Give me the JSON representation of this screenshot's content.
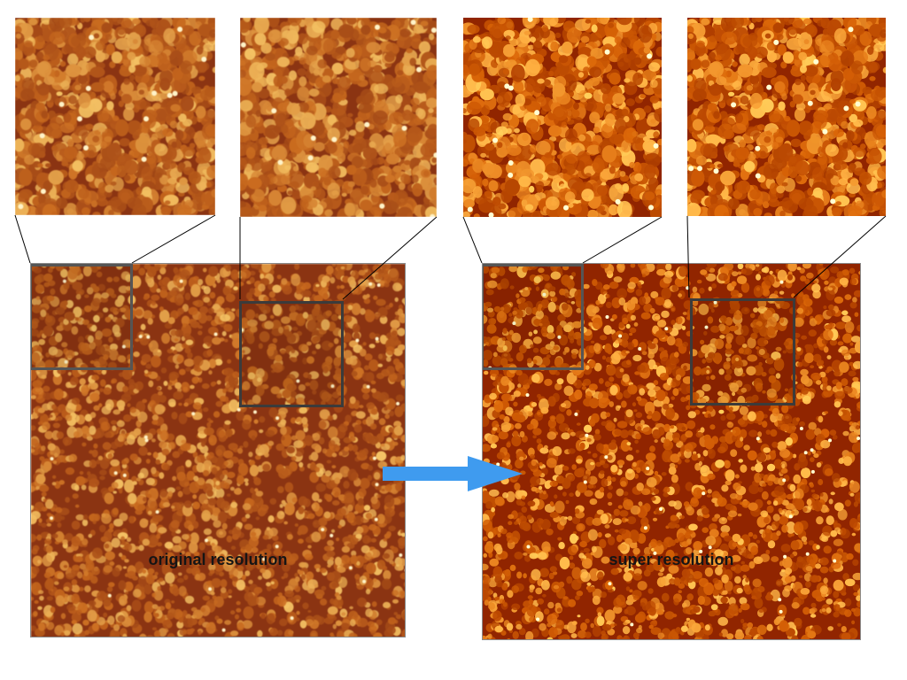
{
  "left_panel": {
    "label": "original resolution"
  },
  "right_panel": {
    "label": "super resolution"
  },
  "colors": {
    "texture_low": "#8b3412",
    "texture_mid": "#c96a1e",
    "texture_high": "#f6c566",
    "arrow": "#3f9bef",
    "roi_border": "#3b3b3b",
    "connector": "#000000"
  },
  "icons": {
    "transition": "arrow-right-icon"
  }
}
